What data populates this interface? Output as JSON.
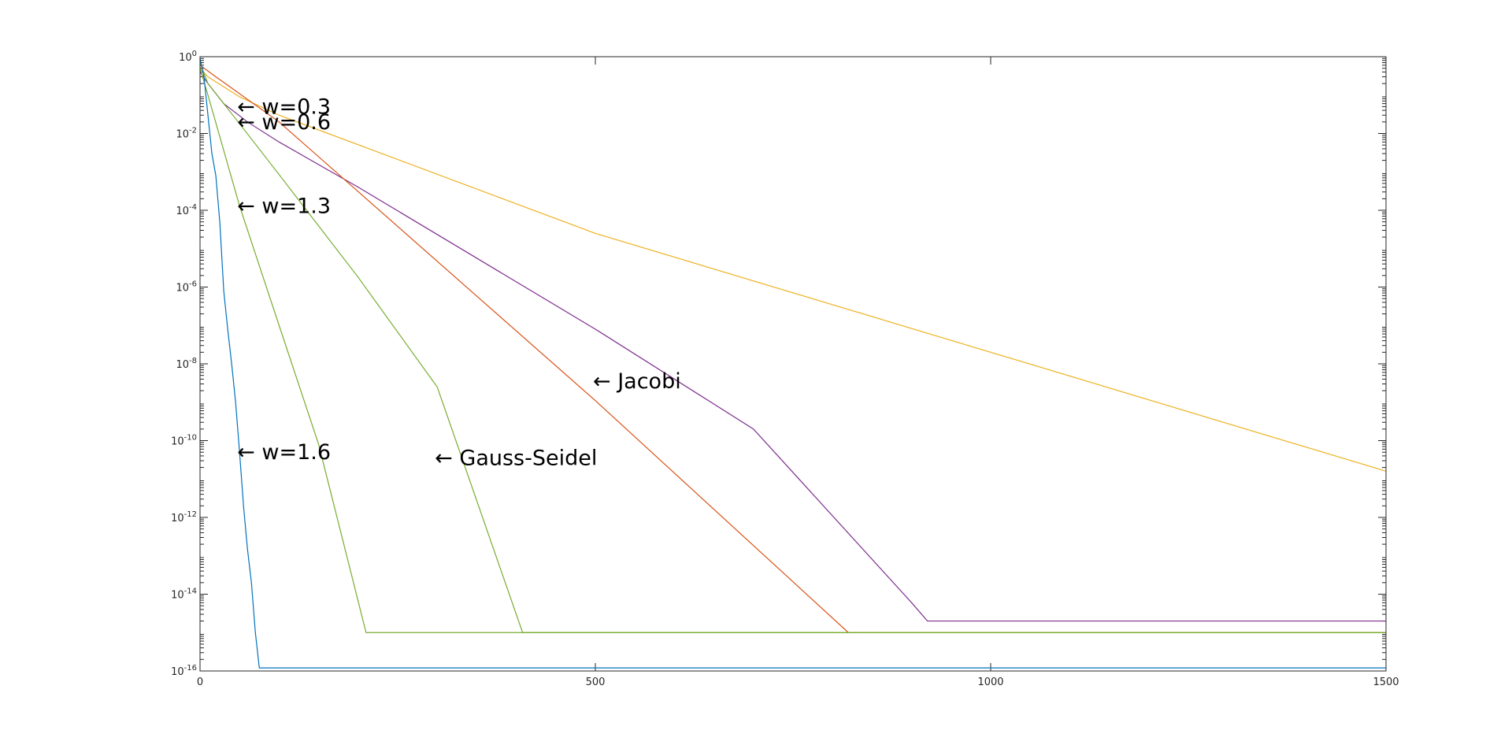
{
  "chart_data": {
    "type": "line",
    "title": "",
    "xlabel": "",
    "ylabel": "",
    "xscale": "linear",
    "yscale": "log",
    "xlim": [
      0,
      1500
    ],
    "ylim": [
      1e-16,
      1
    ],
    "grid": false,
    "legend": "none",
    "x_ticks": [
      {
        "value": 0,
        "label": "0"
      },
      {
        "value": 500,
        "label": "500"
      },
      {
        "value": 1000,
        "label": "1000"
      },
      {
        "value": 1500,
        "label": "1500"
      }
    ],
    "y_ticks": [
      {
        "exp": 0,
        "base": "10",
        "sup": "0"
      },
      {
        "exp": -2,
        "base": "10",
        "sup": "-2"
      },
      {
        "exp": -4,
        "base": "10",
        "sup": "-4"
      },
      {
        "exp": -6,
        "base": "10",
        "sup": "-6"
      },
      {
        "exp": -8,
        "base": "10",
        "sup": "-8"
      },
      {
        "exp": -10,
        "base": "10",
        "sup": "-10"
      },
      {
        "exp": -12,
        "base": "10",
        "sup": "-12"
      },
      {
        "exp": -14,
        "base": "10",
        "sup": "-14"
      },
      {
        "exp": -16,
        "base": "10",
        "sup": "-16"
      }
    ],
    "series": [
      {
        "id": "w03",
        "color": "#EDB120",
        "points": [
          [
            0,
            0.5
          ],
          [
            10,
            0.3
          ],
          [
            50,
            0.09
          ],
          [
            100,
            0.03
          ],
          [
            500,
            2.5e-05
          ],
          [
            1000,
            2e-08
          ],
          [
            1500,
            1.6e-11
          ]
        ]
      },
      {
        "id": "w06",
        "color": "#7E2F8E",
        "points": [
          [
            0,
            0.4
          ],
          [
            10,
            0.2
          ],
          [
            30,
            0.06
          ],
          [
            60,
            0.02
          ],
          [
            100,
            0.006
          ],
          [
            200,
            0.0004
          ],
          [
            500,
            8e-08
          ],
          [
            700,
            2e-10
          ],
          [
            900,
            6e-15
          ],
          [
            920,
            2e-15
          ],
          [
            1500,
            2e-15
          ]
        ]
      },
      {
        "id": "jacobi",
        "color": "#D95319",
        "points": [
          [
            0,
            0.6
          ],
          [
            20,
            0.3
          ],
          [
            100,
            0.02
          ],
          [
            500,
            1.1e-09
          ],
          [
            820,
            1e-15
          ],
          [
            1500,
            1e-15
          ]
        ]
      },
      {
        "id": "gauss",
        "color": "#77AC30",
        "points": [
          [
            0,
            0.7
          ],
          [
            10,
            0.2
          ],
          [
            50,
            0.018
          ],
          [
            100,
            0.00085
          ],
          [
            200,
            1.8e-06
          ],
          [
            300,
            2.5e-09
          ],
          [
            408,
            1e-15
          ],
          [
            1500,
            1e-15
          ]
        ]
      },
      {
        "id": "w13",
        "color": "#77AC30",
        "points": [
          [
            0,
            0.5
          ],
          [
            10,
            0.1
          ],
          [
            50,
            0.00013
          ],
          [
            100,
            1e-07
          ],
          [
            150,
            8e-11
          ],
          [
            210,
            1e-15
          ],
          [
            1500,
            1e-15
          ]
        ]
      },
      {
        "id": "w16",
        "color": "#0072BD",
        "points": [
          [
            0,
            0.9
          ],
          [
            5,
            0.3
          ],
          [
            10,
            0.03
          ],
          [
            15,
            0.003
          ],
          [
            20,
            0.0008
          ],
          [
            25,
            5e-05
          ],
          [
            30,
            8e-07
          ],
          [
            35,
            8e-08
          ],
          [
            40,
            1e-08
          ],
          [
            45,
            1e-09
          ],
          [
            50,
            5e-11
          ],
          [
            55,
            2e-12
          ],
          [
            60,
            1.5e-13
          ],
          [
            65,
            2e-14
          ],
          [
            70,
            1e-15
          ],
          [
            75,
            1.2e-16
          ],
          [
            1500,
            1.2e-16
          ]
        ]
      }
    ],
    "annotations": [
      {
        "text": "← w=0.3",
        "x": 50,
        "y": 0.05
      },
      {
        "text": "← w=0.6",
        "x": 50,
        "y": 0.02
      },
      {
        "text": "← w=1.3",
        "x": 50,
        "y": 0.00013
      },
      {
        "text": "← w=1.6",
        "x": 50,
        "y": 5e-11
      },
      {
        "text": "← Jacobi",
        "x": 500,
        "y": 3.5e-09
      },
      {
        "text": "← Gauss-Seidel",
        "x": 300,
        "y": 3.5e-11
      }
    ]
  }
}
